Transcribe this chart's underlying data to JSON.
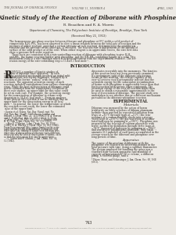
{
  "header_left": "THE JOURNAL OF CHEMICAL PHYSICS",
  "header_center": "VOLUME 11, NUMBER 4",
  "header_right": "APRIL, 1943",
  "title": "Kinetic Study of the Reaction of Diborane with Phosphine*",
  "authors": "R. Braathen and R. A. Morris",
  "affiliation": "Department of Chemistry, The Polytechnic Institute of Brooklyn, Brooklyn, New York",
  "received": "(Received May 25, 1953)",
  "abstract_lines": [
    "The homogeneous gas phase reaction between diborane and phosphine at 0°C yields a solid product of",
    "composition B₂H₆·PH₃, has been observed to obey a linear relation between the total rate of reaction and the",
    "pressure of either reactant, provided a certain pressure of each reactant, determined by the equilibrium",
    "constant and the pressure of the other gas, is exceeded. The reaction rate is independent of the amount of",
    "surface of the solid product at of the wall. When either reagent is in appreciable excess, the rate first data",
    "show a pressure first order equation.",
    "   These facts are consistent with a rate-controlling reaction of diborane with phosphine to give B₂H₆,",
    "and BH₃, the borine reacting further with phosphine, and the BH₃PH₃ combining rapidly to a solid. This",
    "mechanism leads to a rate equation which is in good agreement with the experimental evidence. The act-",
    "ivation energy of the rate-controlling step is 15.4±0.5 kcal mole⁻¹."
  ],
  "intro_heading": "INTRODUCTION",
  "left_col_lines": [
    "ECENTLY, a number of kinetic studies of",
    "reactions of diborane have appeared.¹ In each",
    "case the postulated mechanism involved an initial split",
    "of the diborane into borine fragments, followed by a",
    "reaction of the borine “radical” with one of the",
    "reactants. The apparent activation energy of such",
    "reaction included contributions from various elementary",
    "steps. While the heat of dissociation of diborane could",
    "not be estimated from the temperature coefficient of",
    "these rate studies, an upper limit for this value could",
    "be set in each case. For example, the activation energy",
    "for the isomerization of diborane to ethane with",
    "decoration is 36.4±1 kcal mole⁻¹. From an analyses",
    "of the data on this reaction it can be inferred that an",
    "upper limit for the dissociation energy in 40 kcal",
    "mole⁻¹. In general, the lower the temperature at which",
    "the reaction occurs easily, the lower the estimated",
    "value of the upper limit."
  ],
  "right_col_lines": [
    "dissociates reversibly into the monomers. The kinetics",
    "of this reaction have not been previously examined.",
    "If a preliminary split of the diborane into borines",
    "occurs in this reaction, the relative rapidity of the",
    "over-all process would presumably indicate that the",
    "activation energy for the subsequent recombination",
    "of borine with phosphine is appreciably lower than that",
    "for its reaction with various other compounds. The",
    "activation energy of the over-all reaction might then",
    "be used to obtain a reasonable approximation to the",
    "heat of dissociation of diborane. The present study was",
    "undertaken to see whether this or a different mechanism",
    "prevailed in the diborane-phosphine reaction."
  ],
  "experimental_heading": "EXPERIMENTAL",
  "materials_heading": "Materials",
  "materials_lines": [
    "Diborane was prepared by the action of boron",
    "trichloride on ether solutions of lithium aluminum",
    "hydride² then purified by repeated distillation from",
    "traps at −85°C through traps at −15°C (the tem-",
    "perature of a carbon disulfide slush) into a storage",
    "vessel kept at −196°C; the gas was freed of accumu-",
    "lated hydrogen by pumping at −196°C. Phosphine was",
    "prepared by the reaction of calcium phosphide with",
    "water, purified by distillation through three traps at",
    "−78°C, degassed of hydrogen by pumping at −196°C,",
    "and stored over phosphorous pentoxide. Only small",
    "amounts (0.5 mmoles) of each gases accumulated in the",
    "storage vessels by the diborane and phosphine over",
    "long periods of time."
  ],
  "apparatus_heading": "Apparatus",
  "apparatus_lines": [
    "The course of the reaction of diborane with the",
    "phosphine was followed by observing changes in the",
    "total pressure with time, using a capillary manometer.",
    "The system employed for handling the gases was a",
    "standard high-vacuum apparatus and manifold of",
    "capacity of approximately 60 cc volume, a diffusion",
    "pump, a McLeod gauge, and a"
  ],
  "left_refs": [
    "¹ Garvin et al; Young, Nat. Bur. Stand. rept. No.",
    "714 (Nat. Bur. Stand.) 1949; Bragg, Jenkins and",
    "Ballard, J. Chem. Phys. 21, 1151 (1951); B. A. Dunson",
    "and G. E. MacKay, ibid. 23, 1965 (1951); G. Kistia,",
    "J. Chem. Phys. 19, 1965 (1951); G. T. Whittier and",
    "R. R. Cook, J. Am. Chem. Soc. 74, 131 (1952).",
    "   ² Also E. J. Morton, J. Am. Chem. Soc. 68, 1936",
    "(1946). R. A. Murray, J. Chem. Phys. 14, 813 (1946).",
    "From Ex-perimental data (upper limits) on the activ-",
    "ation energy for the isomerization of diborane with",
    "other data. The finding of borine with diborane plus",
    "other data of dissociation of diborane were different",
    "when you add the heat of dissociation of ethane, such",
    "as that the value given here for the upper limit.",
    "   ³ L. Qurtin and P. Glenner, J. Am. Chem. Soc. 64,",
    "12 (1942)."
  ],
  "right_footnote": "* Pitzer, Stout, and Schiesinger, J. Am. Chem. Soc. 60, 9.68",
  "right_footnote2": "(1951).",
  "page_number": "743",
  "footer": "Reproduced from U.S. © 2023 or its Affiliate. Redistribution subject to AIP license or copyright; see http://jcp.aip.org/jcp/copyright.jsp",
  "bg_color": "#edeae5",
  "text_color": "#2a2520",
  "header_color": "#5a5550"
}
